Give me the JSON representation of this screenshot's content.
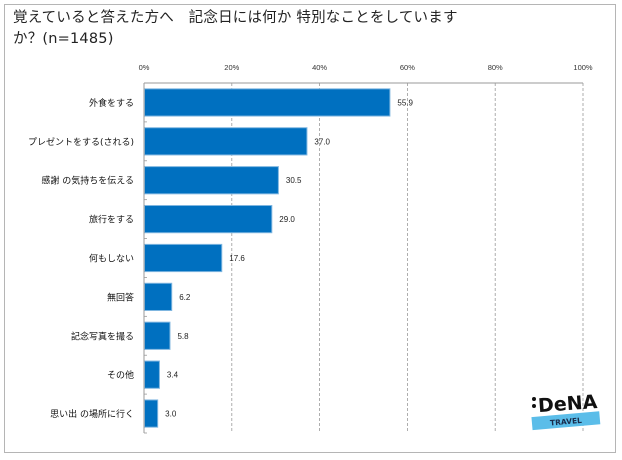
{
  "chart_data": {
    "type": "bar",
    "orientation": "horizontal",
    "title": "覚えていると答えた方へ　記念日には何か 特別なことをしていますか？(n=1485)",
    "title_lines": [
      "覚えていると答えた方へ　記念日には何か 特別なことをしています",
      "か？(n=1485)"
    ],
    "categories": [
      "外食をする",
      "プレゼントをする(される)",
      "感謝 の気持ちを伝える",
      "旅行をする",
      "何もしない",
      "無回答",
      "記念写真を撮る",
      "その他",
      "思い出 の場所に行く"
    ],
    "values": [
      55.9,
      37.0,
      30.5,
      29.0,
      17.6,
      6.2,
      5.8,
      3.4,
      3.0
    ],
    "value_labels": [
      "55.9",
      "37.0",
      "30.5",
      "29.0",
      "17.6",
      "6.2",
      "5.8",
      "3.4",
      "3.0"
    ],
    "xlim": [
      0,
      100
    ],
    "xticks": [
      0,
      20,
      40,
      60,
      80,
      100
    ],
    "xtick_labels": [
      "0%",
      "20%",
      "40%",
      "60%",
      "80%",
      "100%"
    ],
    "xaxis_position": "top",
    "grid": true,
    "xlabel": "",
    "ylabel": "",
    "bar_color": "#0070c0",
    "bar_edge_color": "#7fb6e0"
  },
  "logo": {
    "brand": ":DeNA",
    "sub": "TRAVEL",
    "accent": "#5bbde9"
  }
}
